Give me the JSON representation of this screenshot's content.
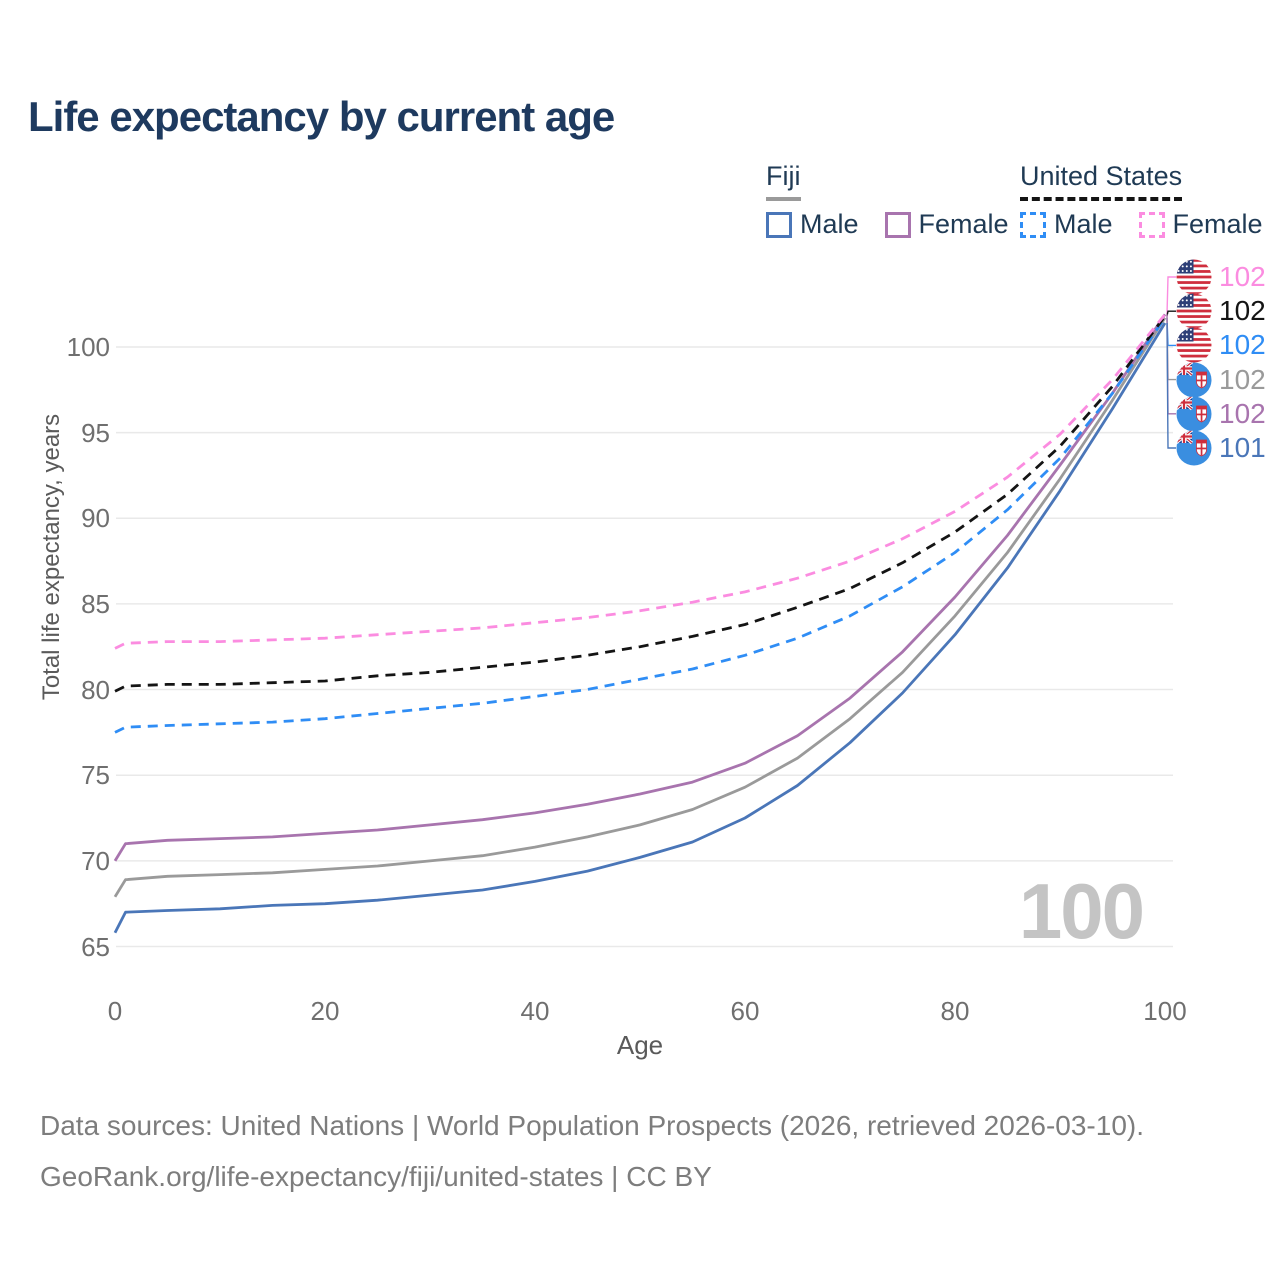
{
  "title": "Life expectancy by current age",
  "watermark_age": "100",
  "legend": {
    "groups": [
      {
        "id": "fiji",
        "label": "Fiji",
        "underline_series": "fiji_all",
        "items": [
          {
            "label": "Male",
            "series": "fiji_male"
          },
          {
            "label": "Female",
            "series": "fiji_female"
          }
        ]
      },
      {
        "id": "us",
        "label": "United States",
        "underline_series": "us_all",
        "items": [
          {
            "label": "Male",
            "series": "us_male"
          },
          {
            "label": "Female",
            "series": "us_female"
          }
        ]
      }
    ]
  },
  "footer": {
    "line1": "Data sources: United Nations | World Population Prospects (2026, retrieved 2026-03-10).",
    "line2": "GeoRank.org/life-expectancy/fiji/united-states | CC BY"
  },
  "chart_data": {
    "type": "line",
    "title": "Life expectancy by current age",
    "xlabel": "Age",
    "ylabel": "Total life expectancy, years",
    "xlim": [
      0,
      100
    ],
    "ylim": [
      63.5,
      105
    ],
    "x_ticks": [
      0,
      20,
      40,
      60,
      80,
      100
    ],
    "y_ticks": [
      65,
      70,
      75,
      80,
      85,
      90,
      95,
      100
    ],
    "grid": "horizontal",
    "grid_color": "#e9e9e9",
    "legend_position": "top-right",
    "ages": [
      0,
      1,
      5,
      10,
      15,
      20,
      25,
      30,
      35,
      40,
      45,
      50,
      55,
      60,
      65,
      70,
      75,
      80,
      85,
      90,
      95,
      100
    ],
    "series": [
      {
        "id": "fiji_male",
        "country": "Fiji",
        "sex": "Male",
        "flag": "fiji",
        "color": "#4a76b8",
        "dash": "solid",
        "end_value_label": "101",
        "values": [
          65.8,
          67.0,
          67.1,
          67.2,
          67.4,
          67.5,
          67.7,
          68.0,
          68.3,
          68.8,
          69.4,
          70.2,
          71.1,
          72.5,
          74.4,
          76.9,
          79.8,
          83.2,
          87.1,
          91.6,
          96.4,
          101.4
        ]
      },
      {
        "id": "fiji_all",
        "country": "Fiji",
        "sex": "Both sexes",
        "flag": "fiji",
        "color": "#9a9a9a",
        "dash": "solid",
        "end_value_label": "102",
        "values": [
          67.9,
          68.9,
          69.1,
          69.2,
          69.3,
          69.5,
          69.7,
          70.0,
          70.3,
          70.8,
          71.4,
          72.1,
          73.0,
          74.3,
          76.0,
          78.3,
          81.0,
          84.3,
          88.0,
          92.3,
          96.9,
          101.7
        ]
      },
      {
        "id": "fiji_female",
        "country": "Fiji",
        "sex": "Female",
        "flag": "fiji",
        "color": "#a874ae",
        "dash": "solid",
        "end_value_label": "102",
        "values": [
          70.0,
          71.0,
          71.2,
          71.3,
          71.4,
          71.6,
          71.8,
          72.1,
          72.4,
          72.8,
          73.3,
          73.9,
          74.6,
          75.7,
          77.3,
          79.5,
          82.2,
          85.4,
          89.0,
          93.1,
          97.3,
          101.9
        ]
      },
      {
        "id": "us_male",
        "country": "United States",
        "sex": "Male",
        "flag": "us",
        "color": "#2f8df5",
        "dash": "dashed",
        "end_value_label": "102",
        "values": [
          77.5,
          77.8,
          77.9,
          78.0,
          78.1,
          78.3,
          78.6,
          78.9,
          79.2,
          79.6,
          80.0,
          80.6,
          81.2,
          82.0,
          83.0,
          84.3,
          86.0,
          88.0,
          90.5,
          93.5,
          97.3,
          101.7
        ]
      },
      {
        "id": "us_all",
        "country": "United States",
        "sex": "Both sexes",
        "flag": "us",
        "color": "#141414",
        "dash": "dashed",
        "end_value_label": "102",
        "values": [
          79.9,
          80.2,
          80.3,
          80.3,
          80.4,
          80.5,
          80.8,
          81.0,
          81.3,
          81.6,
          82.0,
          82.5,
          83.1,
          83.8,
          84.8,
          85.9,
          87.4,
          89.2,
          91.4,
          94.2,
          97.7,
          101.8
        ]
      },
      {
        "id": "us_female",
        "country": "United States",
        "sex": "Female",
        "flag": "us",
        "color": "#fb8ce0",
        "dash": "dashed",
        "end_value_label": "102",
        "values": [
          82.4,
          82.7,
          82.8,
          82.8,
          82.9,
          83.0,
          83.2,
          83.4,
          83.6,
          83.9,
          84.2,
          84.6,
          85.1,
          85.7,
          86.5,
          87.5,
          88.8,
          90.4,
          92.4,
          94.9,
          98.1,
          101.9
        ]
      }
    ],
    "end_labels": [
      {
        "series": "us_female",
        "flag": "us",
        "value": "102"
      },
      {
        "series": "us_all",
        "flag": "us",
        "value": "102"
      },
      {
        "series": "us_male",
        "flag": "us",
        "value": "102"
      },
      {
        "series": "fiji_all",
        "flag": "fiji",
        "value": "102"
      },
      {
        "series": "fiji_female",
        "flag": "fiji",
        "value": "102"
      },
      {
        "series": "fiji_male",
        "flag": "fiji",
        "value": "101"
      }
    ]
  }
}
